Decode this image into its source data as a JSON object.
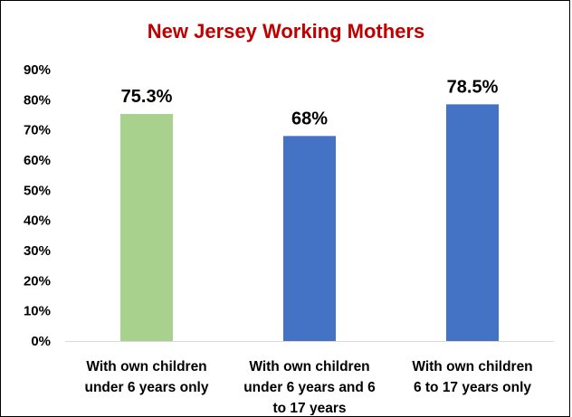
{
  "chart_data": {
    "type": "bar",
    "title": "New Jersey Working Mothers",
    "categories": [
      [
        "With own children",
        "under 6 years only"
      ],
      [
        "With own children",
        "under 6 years and 6",
        "to 17  years"
      ],
      [
        "With own children",
        "6 to 17 years only"
      ]
    ],
    "values": [
      75.3,
      68,
      78.5
    ],
    "data_labels": [
      "75.3%",
      "68%",
      "78.5%"
    ],
    "bar_colors": [
      "#a9d18e",
      "#4472c4",
      "#4472c4"
    ],
    "ylim": [
      0,
      90
    ],
    "y_ticks": [
      "0%",
      "10%",
      "20%",
      "30%",
      "40%",
      "50%",
      "60%",
      "70%",
      "80%",
      "90%"
    ],
    "grid": false,
    "legend": "none",
    "title_color": "#c00000"
  }
}
